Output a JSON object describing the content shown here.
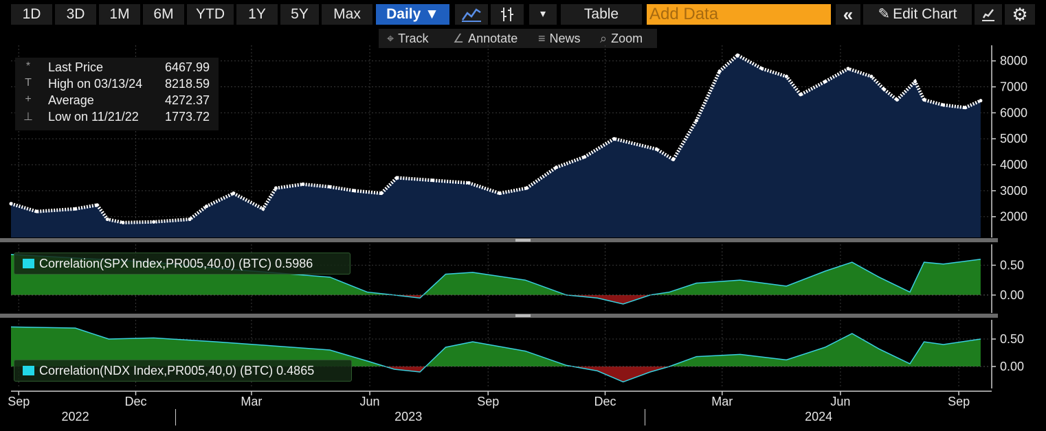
{
  "toolbar": {
    "periods": [
      "1D",
      "3D",
      "1M",
      "6M",
      "YTD",
      "1Y",
      "5Y",
      "Max"
    ],
    "frequency": "Daily ▼",
    "line_icon": "🗲",
    "bars_icon": "‡",
    "dropdown_icon": "▾",
    "table_label": "Table",
    "add_data_placeholder": "Add Data",
    "collapse_icon": "«",
    "edit_chart_label": "Edit Chart",
    "pencil_icon": "✎",
    "settings_icon": "⚙"
  },
  "subbar": {
    "track": "Track",
    "annotate": "Annotate",
    "news": "News",
    "zoom": "Zoom"
  },
  "legend": {
    "rows": [
      {
        "icon": "*",
        "label": "Last Price",
        "value": "6467.99"
      },
      {
        "icon": "T",
        "label": "High on 03/13/24",
        "value": "8218.59"
      },
      {
        "icon": "+",
        "label": "Average",
        "value": "4272.37"
      },
      {
        "icon": "⊥",
        "label": "Low on 11/21/22",
        "value": "1773.72"
      }
    ]
  },
  "colors": {
    "price_fill": "#0e2244",
    "price_line": "#ffffff",
    "corr_positive": "#1e7d1e",
    "corr_negative": "#8a1414",
    "corr_line": "#3ad0df"
  },
  "chart_data": [
    {
      "type": "area",
      "series_name": "Last Price",
      "x": [
        "2022-08-26",
        "2022-09-15",
        "2022-10-15",
        "2022-11-01",
        "2022-11-09",
        "2022-11-21",
        "2022-12-15",
        "2023-01-12",
        "2023-01-25",
        "2023-02-15",
        "2023-03-10",
        "2023-03-20",
        "2023-04-10",
        "2023-05-01",
        "2023-05-20",
        "2023-06-10",
        "2023-06-22",
        "2023-07-20",
        "2023-08-17",
        "2023-09-10",
        "2023-10-01",
        "2023-10-24",
        "2023-11-15",
        "2023-12-08",
        "2024-01-10",
        "2024-01-23",
        "2024-02-10",
        "2024-02-28",
        "2024-03-13",
        "2024-04-01",
        "2024-04-20",
        "2024-05-01",
        "2024-05-20",
        "2024-06-07",
        "2024-06-25",
        "2024-07-05",
        "2024-07-15",
        "2024-07-29",
        "2024-08-05",
        "2024-08-20",
        "2024-09-06",
        "2024-09-18"
      ],
      "y": [
        2500,
        2200,
        2300,
        2450,
        1900,
        1773.72,
        1800,
        1900,
        2400,
        2900,
        2300,
        3100,
        3250,
        3150,
        3000,
        2900,
        3500,
        3400,
        3300,
        2900,
        3100,
        3900,
        4300,
        5000,
        4600,
        4200,
        5700,
        7600,
        8218.59,
        7700,
        7400,
        6700,
        7200,
        7700,
        7400,
        6900,
        6500,
        7200,
        6500,
        6300,
        6200,
        6467.99
      ],
      "ylim": [
        1200,
        8600
      ],
      "yticks": [
        2000,
        3000,
        4000,
        5000,
        6000,
        7000,
        8000
      ]
    },
    {
      "type": "area",
      "series_name": "Correlation(SPX Index,PR005,40,0) (BTC)",
      "last_value": "0.5986",
      "x": [
        "2022-08-26",
        "2022-10-15",
        "2022-12-15",
        "2023-02-01",
        "2023-03-15",
        "2023-05-01",
        "2023-05-30",
        "2023-06-20",
        "2023-07-10",
        "2023-07-30",
        "2023-08-20",
        "2023-09-30",
        "2023-11-01",
        "2023-11-25",
        "2023-12-15",
        "2024-01-05",
        "2024-01-20",
        "2024-02-10",
        "2024-03-15",
        "2024-04-20",
        "2024-05-20",
        "2024-06-10",
        "2024-07-01",
        "2024-07-25",
        "2024-08-05",
        "2024-08-20",
        "2024-09-18"
      ],
      "y": [
        0.68,
        0.62,
        0.55,
        0.45,
        0.38,
        0.3,
        0.05,
        0.0,
        -0.05,
        0.35,
        0.38,
        0.25,
        0.0,
        -0.05,
        -0.15,
        0.0,
        0.05,
        0.2,
        0.25,
        0.15,
        0.4,
        0.55,
        0.3,
        0.05,
        0.55,
        0.52,
        0.6
      ],
      "ylim": [
        -0.3,
        0.85
      ],
      "yticks": [
        0.0,
        0.5
      ]
    },
    {
      "type": "area",
      "series_name": "Correlation(NDX Index,PR005,40,0) (BTC)",
      "last_value": "0.4865",
      "x": [
        "2022-08-26",
        "2022-10-15",
        "2022-11-10",
        "2022-12-15",
        "2023-02-01",
        "2023-03-15",
        "2023-05-01",
        "2023-05-30",
        "2023-06-20",
        "2023-07-10",
        "2023-07-30",
        "2023-08-20",
        "2023-09-30",
        "2023-11-01",
        "2023-11-25",
        "2023-12-15",
        "2024-01-05",
        "2024-01-20",
        "2024-02-10",
        "2024-03-15",
        "2024-04-20",
        "2024-05-20",
        "2024-06-10",
        "2024-07-01",
        "2024-07-25",
        "2024-08-05",
        "2024-08-20",
        "2024-09-18"
      ],
      "y": [
        0.72,
        0.7,
        0.5,
        0.52,
        0.45,
        0.38,
        0.3,
        0.1,
        -0.05,
        -0.1,
        0.35,
        0.45,
        0.28,
        0.02,
        -0.08,
        -0.28,
        -0.1,
        0.0,
        0.18,
        0.22,
        0.12,
        0.35,
        0.6,
        0.32,
        0.05,
        0.45,
        0.4,
        0.5
      ],
      "ylim": [
        -0.4,
        0.85
      ],
      "yticks": [
        0.0,
        0.5
      ]
    }
  ],
  "x_axis": {
    "months": [
      {
        "label": "Sep",
        "date": "2022-09-01"
      },
      {
        "label": "Dec",
        "date": "2022-12-01"
      },
      {
        "label": "Mar",
        "date": "2023-03-01"
      },
      {
        "label": "Jun",
        "date": "2023-06-01"
      },
      {
        "label": "Sep",
        "date": "2023-09-01"
      },
      {
        "label": "Dec",
        "date": "2023-12-01"
      },
      {
        "label": "Mar",
        "date": "2024-03-01"
      },
      {
        "label": "Jun",
        "date": "2024-06-01"
      },
      {
        "label": "Sep",
        "date": "2024-09-01"
      }
    ],
    "years": [
      {
        "label": "2022",
        "date": "2022-10-15"
      },
      {
        "label": "2023",
        "date": "2023-07-01"
      },
      {
        "label": "2024",
        "date": "2024-05-15"
      }
    ],
    "year_boundaries": [
      "2023-01-01",
      "2024-01-01"
    ],
    "range": [
      "2022-08-26",
      "2024-09-25"
    ]
  }
}
